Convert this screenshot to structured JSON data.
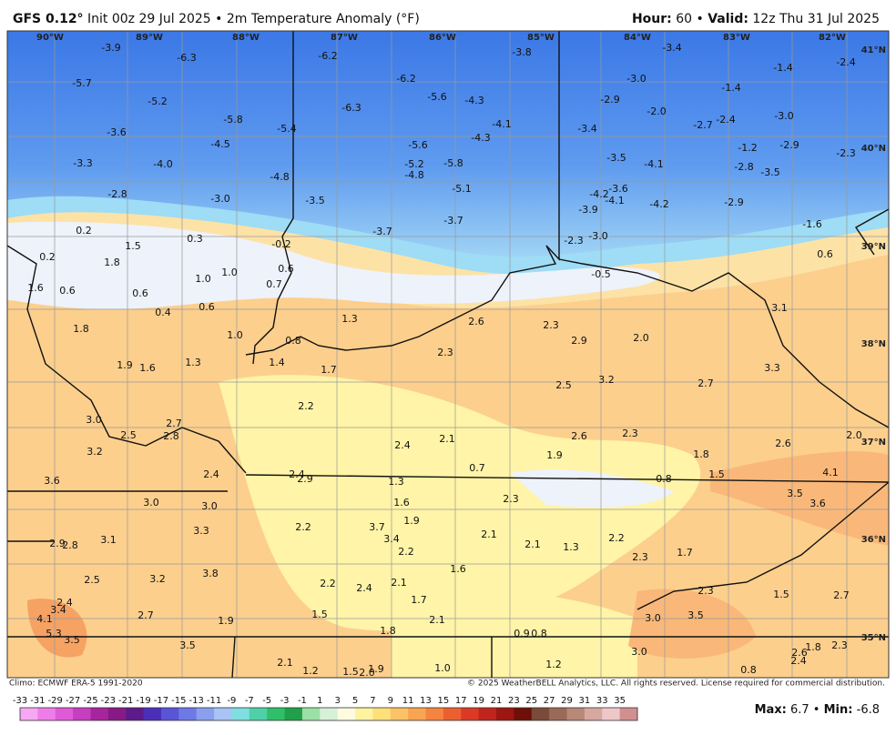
{
  "header": {
    "model": "GFS 0.12°",
    "title": "Init 00z 29 Jul 2025 • 2m Temperature Anomaly (°F)",
    "hour_label": "Hour:",
    "hour_value": "60 •",
    "valid_label": "Valid:",
    "valid_value": "12z Thu 31 Jul 2025"
  },
  "longitudes": [
    "90°W",
    "89°W",
    "88°W",
    "87°W",
    "86°W",
    "85°W",
    "84°W",
    "83°W",
    "82°W"
  ],
  "latitudes": [
    "41°N",
    "40°N",
    "39°N",
    "38°N",
    "37°N",
    "36°N",
    "35°N"
  ],
  "map_labels": [
    "-3.9",
    "-6.3",
    "-6.2",
    "-3.8",
    "-3.4",
    "-2.4",
    "-1.4",
    "-5.7",
    "-5.2",
    "-6.2",
    "-5.6",
    "-4.3",
    "-3.0",
    "-2.9",
    "-1.4",
    "-6.3",
    "-4.1",
    "-2.0",
    "-2.4",
    "-3.0",
    "-2.7",
    "-3.6",
    "-5.8",
    "-5.4",
    "-4.3",
    "-3.4",
    "-4.5",
    "-5.6",
    "-1.2",
    "-2.9",
    "-2.3",
    "-3.3",
    "-4.0",
    "-5.2",
    "-5.8",
    "-3.5",
    "-4.1",
    "-2.8",
    "-3.5",
    "-4.8",
    "-4.8",
    "-2.8",
    "-3.0",
    "-3.5",
    "-5.1",
    "-4.2",
    "-3.6",
    "-4.1",
    "-4.2",
    "-2.9",
    "-3.9",
    "-3.7",
    "-3.7",
    "0.2",
    "-1.6",
    "-2.3",
    "-3.0",
    "0.3",
    "1.5",
    "-0.2",
    "0.6",
    "0.2",
    "1.8",
    "1.0",
    "1.0",
    "0.6",
    "-0.5",
    "0.7",
    "1.6",
    "0.6",
    "0.6",
    "0.6",
    "0.4",
    "3.1",
    "1.3",
    "2.6",
    "2.3",
    "1.8",
    "1.0",
    "0.8",
    "2.9",
    "2.0",
    "2.3",
    "1.4",
    "1.9",
    "1.6",
    "1.3",
    "1.7",
    "3.3",
    "2.5",
    "3.2",
    "2.7",
    "2.2",
    "3.0",
    "2.7",
    "2.5",
    "2.8",
    "2.6",
    "2.3",
    "2.4",
    "2.1",
    "2.0",
    "2.6",
    "3.2",
    "1.9",
    "1.8",
    "0.7",
    "2.4",
    "2.4",
    "2.9",
    "1.3",
    "0.8",
    "1.5",
    "4.1",
    "3.6",
    "3.5",
    "2.3",
    "3.0",
    "3.0",
    "1.6",
    "3.6",
    "1.9",
    "3.7",
    "2.2",
    "3.3",
    "2.1",
    "3.4",
    "2.1",
    "1.3",
    "2.2",
    "3.1",
    "2.9",
    "2.8",
    "2.2",
    "1.7",
    "2.3",
    "1.6",
    "3.8",
    "3.2",
    "2.5",
    "2.2",
    "2.1",
    "2.4",
    "2.3",
    "1.5",
    "2.7",
    "2.4",
    "1.7",
    "1.5",
    "2.7",
    "3.0",
    "3.5",
    "3.4",
    "4.1",
    "2.1",
    "1.9",
    "1.8",
    "0.9",
    "0.8",
    "5.3",
    "3.5",
    "3.5",
    "2.3",
    "1.8",
    "2.6",
    "3.0",
    "2.4",
    "1.2",
    "2.1",
    "1.2",
    "1.5",
    "2.0",
    "1.9",
    "1.0",
    "0.8"
  ],
  "footer": {
    "climo": "Climo: ECMWF ERA-5 1991-2020",
    "copyright": "© 2025 WeatherBELL Analytics, LLC. All rights reserved. License required for commercial distribution.",
    "max_label": "Max:",
    "max_value": "6.7 •",
    "min_label": "Min:",
    "min_value": "-6.8"
  },
  "colorbar": {
    "labels": [
      "-33",
      "-31",
      "-29",
      "-27",
      "-25",
      "-23",
      "-21",
      "-19",
      "-17",
      "-15",
      "-13",
      "-11",
      "-9",
      "-7",
      "-5",
      "-3",
      "-1",
      "1",
      "3",
      "5",
      "7",
      "9",
      "11",
      "13",
      "15",
      "17",
      "19",
      "21",
      "23",
      "25",
      "27",
      "29",
      "31",
      "33",
      "35"
    ]
  }
}
